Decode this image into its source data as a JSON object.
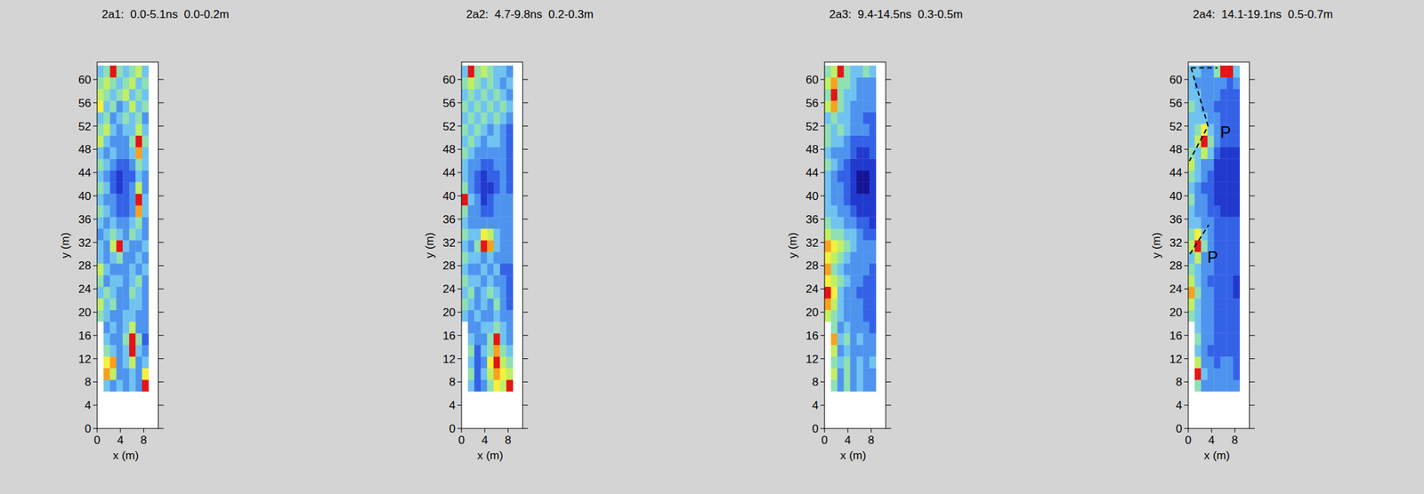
{
  "chart_data": [
    {
      "type": "heatmap",
      "title": "2a1:  0.0-5.1ns  0.0-0.2m",
      "xlabel": "x (m)",
      "ylabel": "y (m)",
      "xlim": [
        0,
        10.5
      ],
      "ylim": [
        0,
        63
      ],
      "xticks": [
        0,
        4,
        8
      ],
      "yticks": [
        0,
        4,
        8,
        12,
        16,
        20,
        24,
        28,
        32,
        36,
        40,
        44,
        48,
        52,
        56,
        60
      ],
      "color_range": [
        0,
        9
      ],
      "x_edges": [
        0,
        1.1,
        2.2,
        3.3,
        4.4,
        5.5,
        6.6,
        7.7,
        8.8
      ],
      "y_edges": [
        6.4,
        8.4,
        10.4,
        12.4,
        14.4,
        16.4,
        18.4,
        20.4,
        22.4,
        24.4,
        26.4,
        28.4,
        30.4,
        32.4,
        34.4,
        36.4,
        38.4,
        40.4,
        42.4,
        44.4,
        46.4,
        48.4,
        50.4,
        52.4,
        54.4,
        56.4,
        58.4,
        60.4,
        62.4
      ],
      "cells": [
        [
          null,
          4,
          3,
          4,
          3,
          4,
          3,
          9
        ],
        [
          null,
          8,
          6,
          3,
          3,
          4,
          3,
          7
        ],
        [
          null,
          7,
          8,
          3,
          4,
          6,
          3,
          4
        ],
        [
          null,
          5,
          4,
          3,
          4,
          9,
          4,
          3
        ],
        [
          null,
          4,
          3,
          3,
          5,
          9,
          5,
          2
        ],
        [
          null,
          3,
          4,
          3,
          4,
          6,
          3,
          3
        ],
        [
          5,
          4,
          3,
          3,
          4,
          4,
          3,
          3
        ],
        [
          6,
          4,
          5,
          3,
          3,
          4,
          4,
          3
        ],
        [
          4,
          5,
          4,
          3,
          3,
          5,
          4,
          3
        ],
        [
          5,
          3,
          4,
          4,
          3,
          4,
          5,
          3
        ],
        [
          6,
          4,
          3,
          3,
          3,
          4,
          3,
          4
        ],
        [
          4,
          3,
          4,
          5,
          3,
          3,
          4,
          3
        ],
        [
          4,
          3,
          6,
          9,
          4,
          3,
          3,
          4
        ],
        [
          3,
          4,
          5,
          4,
          3,
          5,
          4,
          3
        ],
        [
          4,
          3,
          4,
          3,
          3,
          4,
          5,
          3
        ],
        [
          5,
          4,
          3,
          2,
          2,
          3,
          8,
          4
        ],
        [
          4,
          3,
          3,
          2,
          2,
          3,
          9,
          4
        ],
        [
          5,
          4,
          2,
          1,
          2,
          3,
          6,
          3
        ],
        [
          4,
          3,
          2,
          1,
          2,
          2,
          4,
          3
        ],
        [
          5,
          4,
          3,
          2,
          2,
          3,
          5,
          4
        ],
        [
          4,
          3,
          4,
          3,
          3,
          4,
          8,
          4
        ],
        [
          6,
          4,
          3,
          3,
          3,
          5,
          9,
          5
        ],
        [
          5,
          6,
          4,
          3,
          4,
          4,
          6,
          4
        ],
        [
          4,
          5,
          3,
          4,
          5,
          4,
          5,
          3
        ],
        [
          7,
          4,
          5,
          3,
          4,
          6,
          4,
          5
        ],
        [
          6,
          5,
          4,
          5,
          6,
          4,
          5,
          4
        ],
        [
          5,
          6,
          5,
          4,
          5,
          6,
          4,
          5
        ],
        [
          4,
          5,
          9,
          5,
          4,
          5,
          6,
          4
        ]
      ]
    },
    {
      "type": "heatmap",
      "title": "2a2:  4.7-9.8ns  0.2-0.3m",
      "xlabel": "x (m)",
      "ylabel": "y (m)",
      "xlim": [
        0,
        10.5
      ],
      "ylim": [
        0,
        63
      ],
      "xticks": [
        0,
        4,
        8
      ],
      "yticks": [
        0,
        4,
        8,
        12,
        16,
        20,
        24,
        28,
        32,
        36,
        40,
        44,
        48,
        52,
        56,
        60
      ],
      "color_range": [
        0,
        9
      ],
      "x_edges": [
        0,
        1.1,
        2.2,
        3.3,
        4.4,
        5.5,
        6.6,
        7.7,
        8.8
      ],
      "y_edges": [
        6.4,
        8.4,
        10.4,
        12.4,
        14.4,
        16.4,
        18.4,
        20.4,
        22.4,
        24.4,
        26.4,
        28.4,
        30.4,
        32.4,
        34.4,
        36.4,
        38.4,
        40.4,
        42.4,
        44.4,
        46.4,
        48.4,
        50.4,
        52.4,
        54.4,
        56.4,
        58.4,
        60.4,
        62.4
      ],
      "cells": [
        [
          null,
          4,
          2,
          3,
          5,
          7,
          6,
          9
        ],
        [
          null,
          5,
          2,
          4,
          6,
          8,
          7,
          6
        ],
        [
          null,
          4,
          2,
          3,
          7,
          9,
          6,
          5
        ],
        [
          null,
          5,
          2,
          4,
          5,
          8,
          5,
          4
        ],
        [
          null,
          4,
          3,
          3,
          5,
          9,
          4,
          3
        ],
        [
          null,
          3,
          3,
          4,
          4,
          5,
          4,
          3
        ],
        [
          4,
          3,
          4,
          3,
          3,
          4,
          3,
          3
        ],
        [
          5,
          4,
          3,
          4,
          3,
          5,
          3,
          2
        ],
        [
          4,
          5,
          3,
          4,
          5,
          4,
          3,
          2
        ],
        [
          5,
          4,
          4,
          3,
          4,
          3,
          3,
          2
        ],
        [
          4,
          3,
          3,
          4,
          3,
          4,
          2,
          2
        ],
        [
          5,
          4,
          4,
          3,
          4,
          3,
          3,
          3
        ],
        [
          4,
          3,
          5,
          9,
          8,
          4,
          3,
          3
        ],
        [
          5,
          4,
          4,
          7,
          6,
          4,
          3,
          3
        ],
        [
          4,
          3,
          3,
          3,
          3,
          3,
          3,
          3
        ],
        [
          5,
          3,
          3,
          2,
          2,
          3,
          3,
          3
        ],
        [
          9,
          4,
          3,
          1,
          2,
          3,
          3,
          3
        ],
        [
          5,
          3,
          2,
          1,
          1,
          2,
          3,
          2
        ],
        [
          4,
          3,
          2,
          1,
          2,
          2,
          3,
          2
        ],
        [
          4,
          3,
          3,
          2,
          2,
          3,
          3,
          2
        ],
        [
          5,
          4,
          3,
          3,
          3,
          3,
          3,
          2
        ],
        [
          4,
          5,
          4,
          3,
          4,
          4,
          3,
          2
        ],
        [
          5,
          4,
          5,
          4,
          3,
          4,
          3,
          2
        ],
        [
          4,
          5,
          4,
          5,
          4,
          5,
          4,
          3
        ],
        [
          5,
          4,
          5,
          4,
          5,
          4,
          5,
          4
        ],
        [
          4,
          5,
          4,
          5,
          4,
          5,
          4,
          3
        ],
        [
          5,
          6,
          5,
          4,
          5,
          4,
          3,
          4
        ],
        [
          4,
          9,
          5,
          6,
          5,
          4,
          4,
          3
        ]
      ]
    },
    {
      "type": "heatmap",
      "title": "2a3:  9.4-14.5ns  0.3-0.5m",
      "xlabel": "x (m)",
      "ylabel": "y (m)",
      "xlim": [
        0,
        10.5
      ],
      "ylim": [
        0,
        63
      ],
      "xticks": [
        0,
        4,
        8
      ],
      "yticks": [
        0,
        4,
        8,
        12,
        16,
        20,
        24,
        28,
        32,
        36,
        40,
        44,
        48,
        52,
        56,
        60
      ],
      "color_range": [
        0,
        9
      ],
      "x_edges": [
        0,
        1.1,
        2.2,
        3.3,
        4.4,
        5.5,
        6.6,
        7.7,
        8.8
      ],
      "y_edges": [
        6.4,
        8.4,
        10.4,
        12.4,
        14.4,
        16.4,
        18.4,
        20.4,
        22.4,
        24.4,
        26.4,
        28.4,
        30.4,
        32.4,
        34.4,
        36.4,
        38.4,
        40.4,
        42.4,
        44.4,
        46.4,
        48.4,
        50.4,
        52.4,
        54.4,
        56.4,
        58.4,
        60.4,
        62.4
      ],
      "cells": [
        [
          null,
          5,
          3,
          5,
          3,
          4,
          3,
          3
        ],
        [
          null,
          6,
          3,
          5,
          3,
          4,
          3,
          3
        ],
        [
          null,
          5,
          4,
          5,
          3,
          4,
          3,
          4
        ],
        [
          null,
          6,
          3,
          4,
          3,
          3,
          3,
          3
        ],
        [
          null,
          8,
          4,
          5,
          3,
          4,
          3,
          3
        ],
        [
          null,
          5,
          3,
          4,
          3,
          3,
          3,
          2
        ],
        [
          6,
          5,
          4,
          3,
          3,
          3,
          2,
          2
        ],
        [
          8,
          6,
          4,
          3,
          3,
          3,
          2,
          2
        ],
        [
          9,
          7,
          4,
          3,
          3,
          2,
          2,
          2
        ],
        [
          7,
          6,
          5,
          4,
          3,
          3,
          2,
          2
        ],
        [
          8,
          5,
          4,
          3,
          3,
          3,
          3,
          2
        ],
        [
          7,
          6,
          5,
          4,
          3,
          3,
          3,
          3
        ],
        [
          8,
          7,
          6,
          5,
          4,
          3,
          3,
          3
        ],
        [
          6,
          5,
          5,
          4,
          4,
          3,
          2,
          2
        ],
        [
          5,
          4,
          4,
          3,
          3,
          2,
          2,
          1
        ],
        [
          4,
          4,
          3,
          3,
          2,
          1,
          1,
          1
        ],
        [
          4,
          3,
          3,
          2,
          1,
          1,
          1,
          1
        ],
        [
          4,
          3,
          3,
          2,
          1,
          0,
          0,
          1
        ],
        [
          4,
          3,
          2,
          2,
          1,
          0,
          0,
          1
        ],
        [
          5,
          4,
          3,
          2,
          1,
          1,
          1,
          1
        ],
        [
          4,
          3,
          3,
          3,
          2,
          1,
          1,
          2
        ],
        [
          5,
          4,
          4,
          3,
          2,
          2,
          2,
          2
        ],
        [
          5,
          4,
          5,
          4,
          3,
          3,
          3,
          2
        ],
        [
          4,
          5,
          4,
          4,
          3,
          3,
          2,
          2
        ],
        [
          6,
          8,
          5,
          4,
          3,
          3,
          3,
          3
        ],
        [
          5,
          9,
          5,
          4,
          4,
          3,
          3,
          3
        ],
        [
          6,
          8,
          5,
          5,
          4,
          3,
          3,
          3
        ],
        [
          5,
          6,
          9,
          5,
          4,
          4,
          5,
          4
        ]
      ]
    },
    {
      "type": "heatmap",
      "title": "2a4:  14.1-19.1ns  0.5-0.7m",
      "xlabel": "x (m)",
      "ylabel": "y (m)",
      "xlim": [
        0,
        10.5
      ],
      "ylim": [
        0,
        63
      ],
      "xticks": [
        0,
        4,
        8
      ],
      "yticks": [
        0,
        4,
        8,
        12,
        16,
        20,
        24,
        28,
        32,
        36,
        40,
        44,
        48,
        52,
        56,
        60
      ],
      "color_range": [
        0,
        9
      ],
      "x_edges": [
        0,
        1.1,
        2.2,
        3.3,
        4.4,
        5.5,
        6.6,
        7.7,
        8.8
      ],
      "y_edges": [
        6.4,
        8.4,
        10.4,
        12.4,
        14.4,
        16.4,
        18.4,
        20.4,
        22.4,
        24.4,
        26.4,
        28.4,
        30.4,
        32.4,
        34.4,
        36.4,
        38.4,
        40.4,
        42.4,
        44.4,
        46.4,
        48.4,
        50.4,
        52.4,
        54.4,
        56.4,
        58.4,
        60.4,
        62.4
      ],
      "cells": [
        [
          null,
          5,
          3,
          3,
          3,
          3,
          3,
          3
        ],
        [
          null,
          9,
          4,
          3,
          3,
          3,
          3,
          2
        ],
        [
          null,
          6,
          3,
          3,
          2,
          3,
          3,
          2
        ],
        [
          null,
          4,
          3,
          2,
          2,
          2,
          2,
          2
        ],
        [
          null,
          5,
          3,
          3,
          2,
          2,
          2,
          2
        ],
        [
          null,
          4,
          3,
          3,
          2,
          2,
          2,
          2
        ],
        [
          5,
          4,
          3,
          3,
          2,
          2,
          2,
          2
        ],
        [
          6,
          4,
          3,
          3,
          2,
          2,
          2,
          2
        ],
        [
          8,
          5,
          3,
          3,
          2,
          2,
          2,
          1
        ],
        [
          6,
          4,
          3,
          2,
          2,
          2,
          2,
          1
        ],
        [
          5,
          4,
          3,
          3,
          2,
          2,
          2,
          2
        ],
        [
          4,
          6,
          3,
          3,
          2,
          2,
          2,
          2
        ],
        [
          6,
          9,
          5,
          3,
          2,
          2,
          2,
          2
        ],
        [
          5,
          7,
          4,
          3,
          2,
          2,
          2,
          2
        ],
        [
          4,
          4,
          3,
          3,
          2,
          2,
          2,
          2
        ],
        [
          4,
          3,
          3,
          2,
          2,
          1,
          1,
          1
        ],
        [
          5,
          3,
          3,
          2,
          1,
          1,
          1,
          1
        ],
        [
          4,
          3,
          2,
          2,
          1,
          1,
          1,
          1
        ],
        [
          5,
          4,
          3,
          2,
          1,
          1,
          1,
          1
        ],
        [
          6,
          4,
          3,
          3,
          1,
          1,
          1,
          1
        ],
        [
          5,
          4,
          6,
          4,
          2,
          1,
          1,
          1
        ],
        [
          4,
          6,
          9,
          5,
          3,
          2,
          2,
          2
        ],
        [
          4,
          5,
          7,
          4,
          3,
          2,
          2,
          2
        ],
        [
          4,
          4,
          4,
          3,
          3,
          2,
          2,
          2
        ],
        [
          5,
          4,
          3,
          3,
          2,
          2,
          2,
          2
        ],
        [
          4,
          4,
          3,
          3,
          3,
          2,
          2,
          2
        ],
        [
          4,
          3,
          3,
          3,
          3,
          3,
          2,
          3
        ],
        [
          4,
          4,
          3,
          3,
          5,
          9,
          9,
          4
        ]
      ],
      "annotations": [
        {
          "text": "P",
          "x": 6.4,
          "y": 51
        },
        {
          "text": "P",
          "x": 4.2,
          "y": 29.5
        }
      ],
      "lines": [
        {
          "points": [
            [
              0.5,
              62
            ],
            [
              5,
              62
            ]
          ],
          "line_style": "dashed"
        },
        {
          "points": [
            [
              0.5,
              62
            ],
            [
              3.4,
              52
            ],
            [
              0.2,
              46
            ]
          ],
          "line_style": "dashed"
        },
        {
          "points": [
            [
              0.3,
              30
            ],
            [
              3.5,
              35
            ]
          ],
          "line_style": "dashed"
        }
      ]
    }
  ]
}
